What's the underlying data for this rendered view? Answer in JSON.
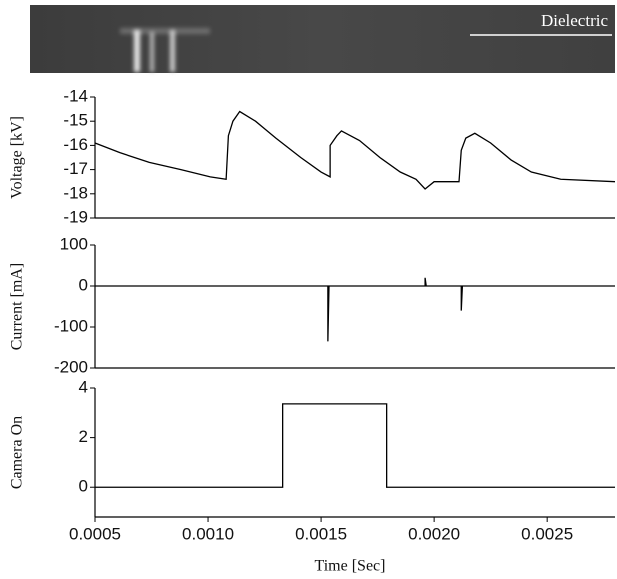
{
  "image_label": "Dielectric",
  "chart_data": [
    {
      "type": "line",
      "ylabel": "Voltage [kV]",
      "color": "#000000",
      "x": [
        0.0005,
        0.00061,
        0.00074,
        0.00088,
        0.00101,
        0.00108,
        0.00109,
        0.00111,
        0.00114,
        0.00121,
        0.0013,
        0.00141,
        0.0015,
        0.00154,
        0.00154,
        0.00157,
        0.00159,
        0.00167,
        0.00176,
        0.00185,
        0.00192,
        0.00196,
        0.002,
        0.00211,
        0.00212,
        0.00214,
        0.00218,
        0.00225,
        0.00234,
        0.00243,
        0.00256,
        0.0028
      ],
      "values": [
        -15.9,
        -16.3,
        -16.7,
        -17.0,
        -17.3,
        -17.4,
        -15.6,
        -15.0,
        -14.6,
        -15.0,
        -15.7,
        -16.5,
        -17.1,
        -17.3,
        -16.0,
        -15.6,
        -15.4,
        -15.8,
        -16.5,
        -17.1,
        -17.4,
        -17.8,
        -17.5,
        -17.5,
        -16.2,
        -15.7,
        -15.5,
        -15.9,
        -16.6,
        -17.1,
        -17.4,
        -17.5
      ],
      "xlim": [
        0.0005,
        0.0028
      ],
      "ylim": [
        -19,
        -14
      ],
      "yticks": [
        -14,
        -15,
        -16,
        -17,
        -18,
        -19
      ]
    },
    {
      "type": "line",
      "ylabel": "Current [mA]",
      "color": "#000000",
      "x": [
        0.0005,
        0.00153,
        0.00153,
        0.001535,
        0.00196,
        0.00196,
        0.001965,
        0.00212,
        0.00212,
        0.002125,
        0.0028
      ],
      "values": [
        0,
        0,
        -135,
        0,
        0,
        20,
        0,
        0,
        -60,
        0,
        0
      ],
      "xlim": [
        0.0005,
        0.0028
      ],
      "ylim": [
        -200,
        100
      ],
      "yticks": [
        100,
        0,
        -100,
        -200
      ]
    },
    {
      "type": "line",
      "ylabel": "Camera On",
      "xlabel": "Time [Sec]",
      "color": "#000000",
      "x": [
        0.0005,
        0.00133,
        0.00133,
        0.00179,
        0.00179,
        0.0028
      ],
      "values": [
        0,
        0,
        3.36,
        3.36,
        0,
        0
      ],
      "xlim": [
        0.0005,
        0.0028
      ],
      "ylim": [
        -1.2,
        4
      ],
      "yticks": [
        4,
        2,
        0
      ],
      "xticks": [
        0.0005,
        {
          "value": 0.001,
          "label": "0.0010"
        },
        0.0015,
        {
          "value": 0.002,
          "label": "0.0020"
        },
        0.0025
      ]
    }
  ]
}
